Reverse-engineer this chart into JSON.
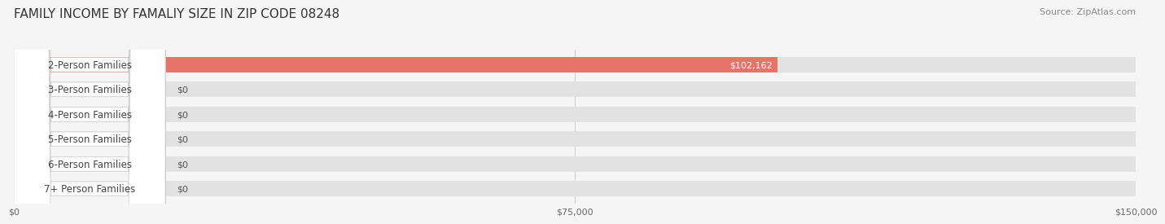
{
  "title": "FAMILY INCOME BY FAMALIY SIZE IN ZIP CODE 08248",
  "source": "Source: ZipAtlas.com",
  "categories": [
    "2-Person Families",
    "3-Person Families",
    "4-Person Families",
    "5-Person Families",
    "6-Person Families",
    "7+ Person Families"
  ],
  "values": [
    102162,
    0,
    0,
    0,
    0,
    0
  ],
  "bar_colors": [
    "#e8736a",
    "#a8bedd",
    "#c9a8d4",
    "#7ecec4",
    "#a8aedd",
    "#f09aaa"
  ],
  "xlim": [
    0,
    150000
  ],
  "xticks": [
    0,
    75000,
    150000
  ],
  "xtick_labels": [
    "$0",
    "$75,000",
    "$150,000"
  ],
  "background_color": "#f5f5f5",
  "title_fontsize": 11,
  "source_fontsize": 8,
  "label_fontsize": 8.5,
  "value_fontsize": 8,
  "bar_height": 0.62,
  "figure_width": 14.06,
  "figure_height": 3.05
}
